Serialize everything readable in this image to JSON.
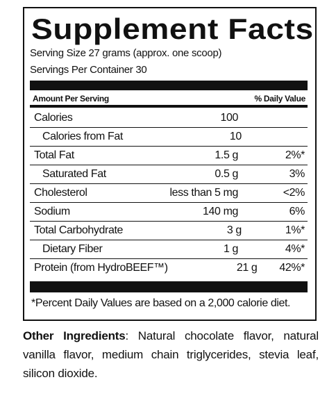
{
  "title": "Supplement Facts",
  "serving_size": "Serving Size 27 grams (approx. one scoop)",
  "servings_per_container": "Servings Per Container 30",
  "table": {
    "header": {
      "amount": "Amount Per Serving",
      "dv": "% Daily Value"
    },
    "rows": [
      {
        "name": "Calories",
        "amount": "100",
        "sub": [
          {
            "name": "Calories from Fat",
            "amount": "10"
          }
        ]
      },
      {
        "name": "Total Fat",
        "amount": "1.5 g",
        "dv": "2%*",
        "sub": [
          {
            "name": "Saturated Fat",
            "amount": "0.5 g",
            "dv": "3%"
          }
        ]
      },
      {
        "name": "Cholesterol",
        "amount": "less than 5 mg",
        "dv": "<2%"
      },
      {
        "name": "Sodium",
        "amount": "140 mg",
        "dv": "6%"
      },
      {
        "name": "Total Carbohydrate",
        "amount": "3 g",
        "dv": "1%*",
        "sub": [
          {
            "name": "Dietary Fiber",
            "amount": "1 g",
            "dv": "4%*"
          }
        ]
      },
      {
        "name": "Protein (from HydroBEEF™)",
        "amount": "21 g",
        "dv": "42%*"
      }
    ]
  },
  "footnote": "*Percent Daily Values are based on a 2,000 calorie diet.",
  "other_ingredients": {
    "label": "Other Ingredients",
    "text": ": Natural chocolate flavor, natural vanilla flavor, medium chain triglycerides, stevia leaf, silicon dioxide."
  }
}
